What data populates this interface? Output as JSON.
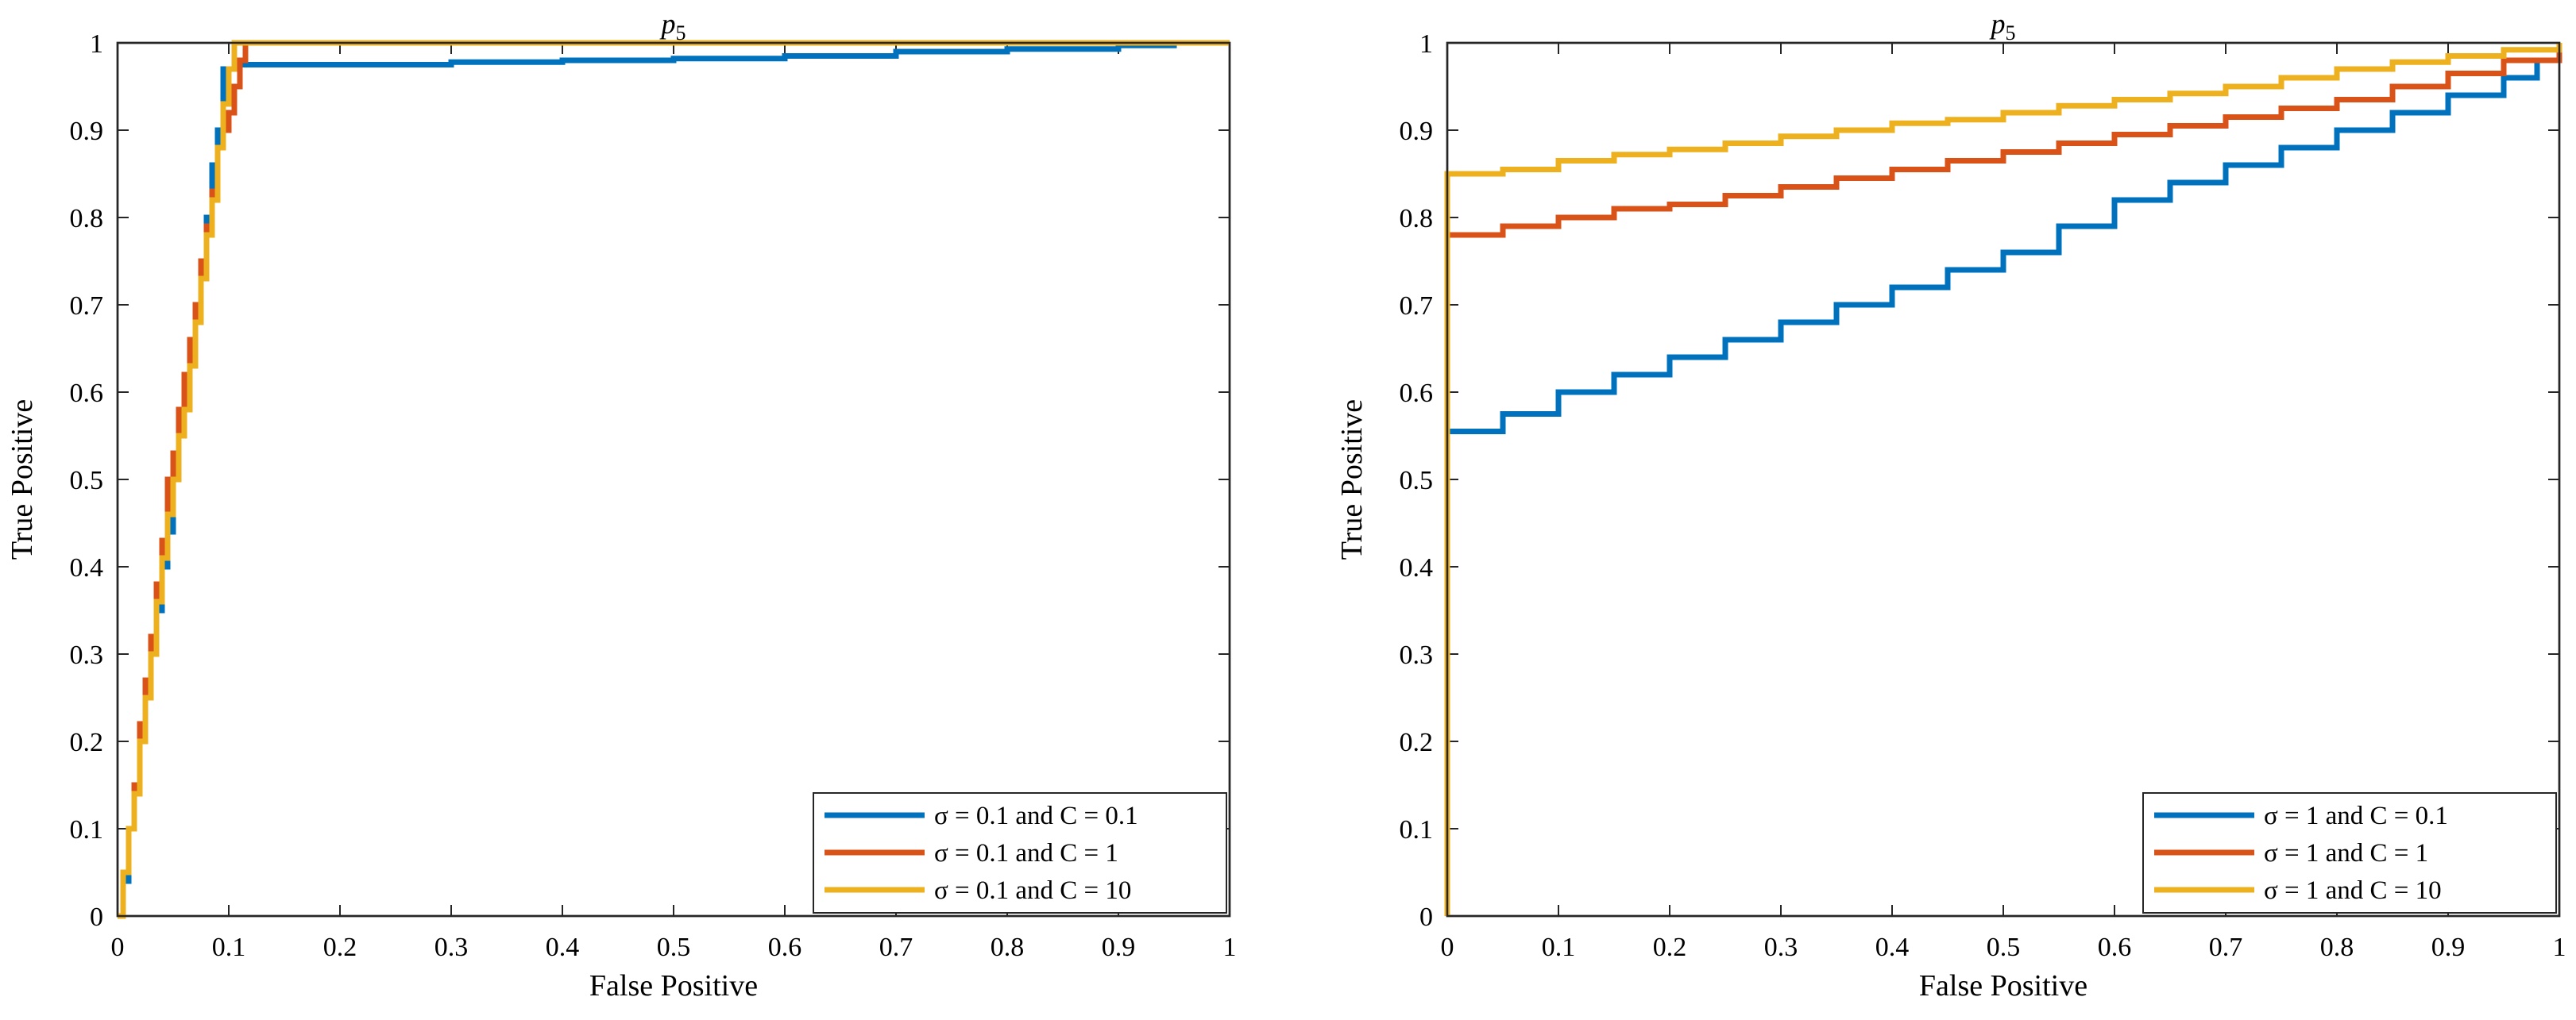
{
  "chart_data": [
    {
      "type": "line",
      "title": "p5",
      "xlabel": "False Positive",
      "ylabel": "True Positive",
      "xlim": [
        0,
        1
      ],
      "ylim": [
        0,
        1
      ],
      "xticks": [
        "0",
        "0.1",
        "0.2",
        "0.3",
        "0.4",
        "0.5",
        "0.6",
        "0.7",
        "0.8",
        "0.9",
        "1"
      ],
      "yticks": [
        "0",
        "0.1",
        "0.2",
        "0.3",
        "0.4",
        "0.5",
        "0.6",
        "0.7",
        "0.8",
        "0.9",
        "1"
      ],
      "legend_position": "bottom-right",
      "series": [
        {
          "name": "σ = 0.1 and C = 0.1",
          "color": "#0072BD",
          "x": [
            0,
            0.005,
            0.01,
            0.015,
            0.02,
            0.025,
            0.03,
            0.035,
            0.04,
            0.045,
            0.05,
            0.055,
            0.06,
            0.065,
            0.07,
            0.075,
            0.08,
            0.085,
            0.09,
            0.095,
            0.1,
            0.105,
            0.12,
            0.2,
            0.3,
            0.4,
            0.5,
            0.6,
            0.7,
            0.8,
            0.9,
            0.95,
            1
          ],
          "y": [
            0,
            0.04,
            0.1,
            0.15,
            0.2,
            0.25,
            0.3,
            0.35,
            0.4,
            0.44,
            0.5,
            0.55,
            0.6,
            0.65,
            0.7,
            0.74,
            0.8,
            0.86,
            0.9,
            0.97,
            0.97,
            0.975,
            0.975,
            0.975,
            0.978,
            0.98,
            0.982,
            0.985,
            0.99,
            0.993,
            0.997,
            1,
            1
          ]
        },
        {
          "name": "σ = 0.1 and C = 1",
          "color": "#D95319",
          "x": [
            0,
            0.005,
            0.01,
            0.015,
            0.02,
            0.025,
            0.03,
            0.035,
            0.04,
            0.045,
            0.05,
            0.055,
            0.06,
            0.065,
            0.07,
            0.075,
            0.08,
            0.085,
            0.09,
            0.095,
            0.1,
            0.105,
            0.11,
            0.115,
            1
          ],
          "y": [
            0,
            0.05,
            0.1,
            0.15,
            0.22,
            0.27,
            0.32,
            0.38,
            0.43,
            0.5,
            0.53,
            0.58,
            0.62,
            0.66,
            0.7,
            0.75,
            0.79,
            0.83,
            0.88,
            0.9,
            0.92,
            0.95,
            0.98,
            1,
            1
          ]
        },
        {
          "name": "σ = 0.1 and C = 10",
          "color": "#EDB120",
          "x": [
            0,
            0.005,
            0.01,
            0.015,
            0.02,
            0.025,
            0.03,
            0.035,
            0.04,
            0.045,
            0.05,
            0.055,
            0.06,
            0.065,
            0.07,
            0.075,
            0.08,
            0.085,
            0.09,
            0.095,
            0.1,
            0.105,
            1
          ],
          "y": [
            0,
            0.05,
            0.1,
            0.14,
            0.2,
            0.25,
            0.3,
            0.36,
            0.41,
            0.46,
            0.5,
            0.55,
            0.58,
            0.63,
            0.68,
            0.73,
            0.78,
            0.82,
            0.88,
            0.93,
            0.97,
            1,
            1
          ]
        }
      ]
    },
    {
      "type": "line",
      "title": "p5",
      "xlabel": "False Positive",
      "ylabel": "True Positive",
      "xlim": [
        0,
        1
      ],
      "ylim": [
        0,
        1
      ],
      "xticks": [
        "0",
        "0.1",
        "0.2",
        "0.3",
        "0.4",
        "0.5",
        "0.6",
        "0.7",
        "0.8",
        "0.9",
        "1"
      ],
      "yticks": [
        "0",
        "0.1",
        "0.2",
        "0.3",
        "0.4",
        "0.5",
        "0.6",
        "0.7",
        "0.8",
        "0.9",
        "1"
      ],
      "legend_position": "bottom-right",
      "series": [
        {
          "name": "σ = 1 and C = 0.1",
          "color": "#0072BD",
          "x": [
            0,
            0.05,
            0.1,
            0.15,
            0.2,
            0.25,
            0.3,
            0.35,
            0.4,
            0.45,
            0.5,
            0.55,
            0.6,
            0.65,
            0.7,
            0.75,
            0.8,
            0.85,
            0.9,
            0.95,
            0.98,
            1
          ],
          "y": [
            0.555,
            0.575,
            0.6,
            0.62,
            0.64,
            0.66,
            0.68,
            0.7,
            0.72,
            0.74,
            0.76,
            0.79,
            0.82,
            0.84,
            0.86,
            0.88,
            0.9,
            0.92,
            0.94,
            0.96,
            0.98,
            0.99
          ]
        },
        {
          "name": "σ = 1 and C = 1",
          "color": "#D95319",
          "x": [
            0,
            0.05,
            0.1,
            0.15,
            0.2,
            0.25,
            0.3,
            0.35,
            0.4,
            0.45,
            0.5,
            0.55,
            0.6,
            0.65,
            0.7,
            0.75,
            0.8,
            0.85,
            0.9,
            0.95,
            1
          ],
          "y": [
            0.78,
            0.79,
            0.8,
            0.81,
            0.815,
            0.825,
            0.835,
            0.845,
            0.855,
            0.865,
            0.875,
            0.885,
            0.895,
            0.905,
            0.915,
            0.925,
            0.935,
            0.95,
            0.965,
            0.98,
            0.99
          ]
        },
        {
          "name": "σ = 1 and C = 10",
          "color": "#EDB120",
          "x": [
            0,
            0,
            0.05,
            0.1,
            0.15,
            0.2,
            0.25,
            0.3,
            0.35,
            0.4,
            0.45,
            0.5,
            0.55,
            0.6,
            0.65,
            0.7,
            0.75,
            0.8,
            0.85,
            0.9,
            0.95,
            1
          ],
          "y": [
            0,
            0.85,
            0.855,
            0.865,
            0.872,
            0.878,
            0.885,
            0.893,
            0.9,
            0.908,
            0.912,
            0.92,
            0.928,
            0.935,
            0.942,
            0.95,
            0.96,
            0.97,
            0.978,
            0.985,
            0.992,
            1
          ]
        }
      ]
    }
  ]
}
